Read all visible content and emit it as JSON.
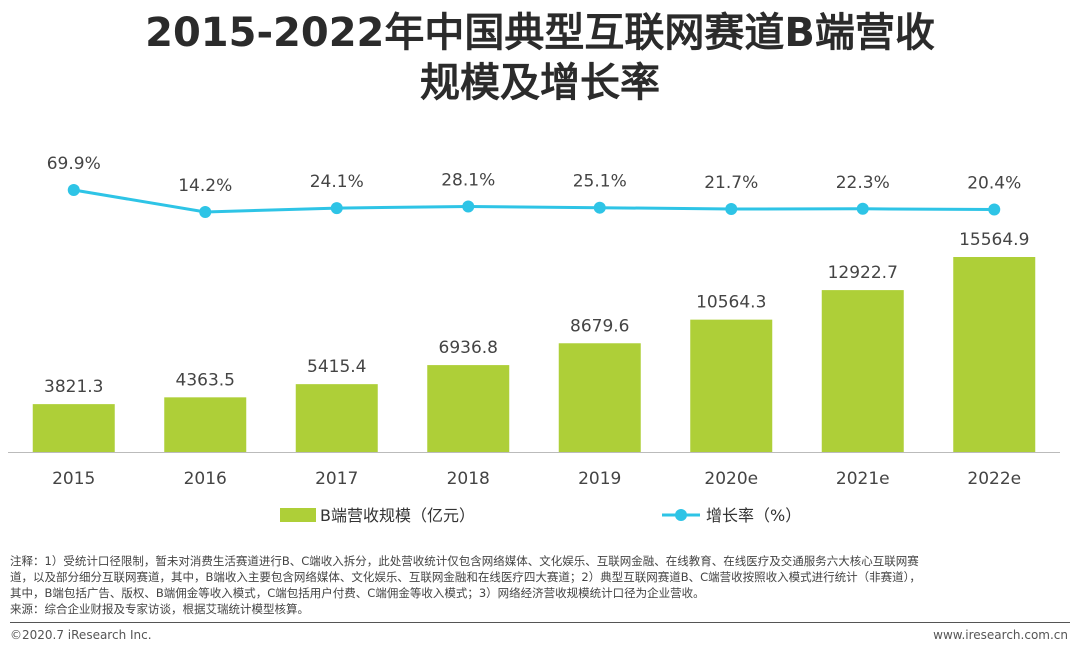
{
  "title": {
    "line1": "2015-2022年中国典型互联网赛道B端营收",
    "line2": "规模及增长率"
  },
  "colors": {
    "bar": "#aecf38",
    "line": "#2ec4e6",
    "axis": "#bbbbbb"
  },
  "chart_data": {
    "type": "bar+line",
    "categories": [
      "2015",
      "2016",
      "2017",
      "2018",
      "2019",
      "2020e",
      "2021e",
      "2022e"
    ],
    "series": [
      {
        "name": "B端营收规模（亿元）",
        "type": "bar",
        "values": [
          3821.3,
          4363.5,
          5415.4,
          6936.8,
          8679.6,
          10564.3,
          12922.7,
          15564.9
        ],
        "labels": [
          "3821.3",
          "4363.5",
          "5415.4",
          "6936.8",
          "8679.6",
          "10564.3",
          "12922.7",
          "15564.9"
        ]
      },
      {
        "name": "增长率（%）",
        "type": "line",
        "values": [
          69.9,
          14.2,
          24.1,
          28.1,
          25.1,
          21.7,
          22.3,
          20.4
        ],
        "labels": [
          "69.9%",
          "14.2%",
          "24.1%",
          "28.1%",
          "25.1%",
          "21.7%",
          "22.3%",
          "20.4%"
        ]
      }
    ],
    "bar_axis": {
      "ylim": [
        0,
        15564.9
      ]
    },
    "line_axis": {
      "ylim": [
        0,
        69.9
      ]
    },
    "legend": [
      "B端营收规模（亿元）",
      "增长率（%）"
    ],
    "legend_position": "bottom"
  },
  "notes": {
    "line1": "注释：1）受统计口径限制，暂未对消费生活赛道进行B、C端收入拆分，此处营收统计仅包含网络媒体、文化娱乐、互联网金融、在线教育、在线医疗及交通服务六大核心互联网赛",
    "line2": "道，以及部分细分互联网赛道，其中，B端收入主要包含网络媒体、文化娱乐、互联网金融和在线医疗四大赛道；2）典型互联网赛道B、C端营收按照收入模式进行统计（非赛道），",
    "line3": "其中，B端包括广告、版权、B端佣金等收入模式，C端包括用户付费、C端佣金等收入模式；3）网络经济营收规模统计口径为企业营收。",
    "line4": "来源：综合企业财报及专家访谈，根据艾瑞统计模型核算。"
  },
  "footer": {
    "copyright": "©2020.7 iResearch Inc.",
    "website": "www.iresearch.com.cn"
  }
}
